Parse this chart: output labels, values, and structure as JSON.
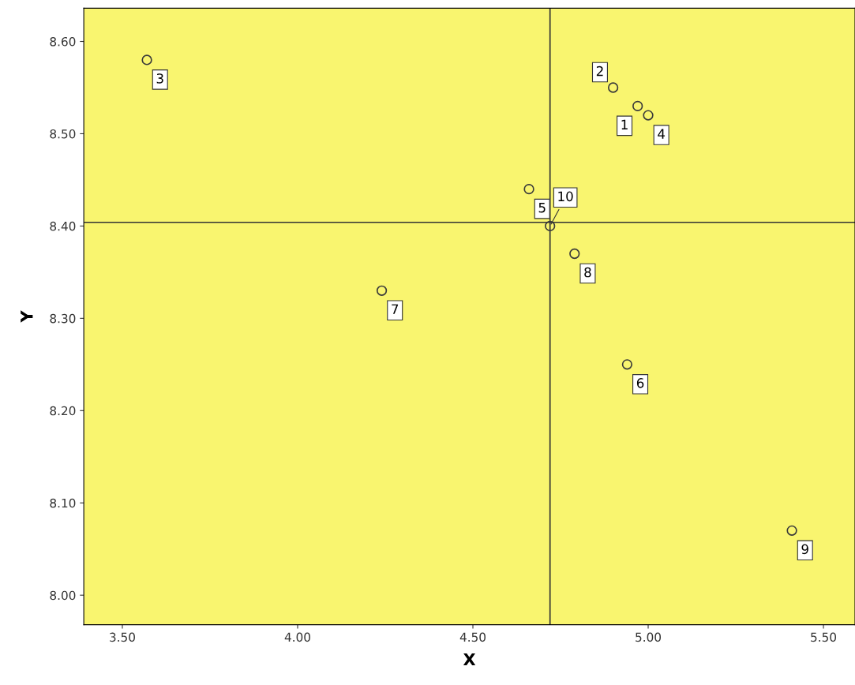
{
  "chart_data": {
    "type": "scatter",
    "xlabel": "X",
    "ylabel": "Y",
    "series": [
      {
        "color": "#3a3a3a",
        "x": [
          4.97,
          4.9,
          3.57,
          5.0,
          4.66,
          4.94,
          4.24,
          4.79,
          5.41,
          4.72
        ],
        "values": [
          8.53,
          8.55,
          8.58,
          8.52,
          8.44,
          8.25,
          8.33,
          8.37,
          8.07,
          8.4
        ]
      }
    ],
    "marker": "circle",
    "grid": false,
    "legend": false,
    "xlim": [
      3.39,
      5.59
    ],
    "ylim": [
      7.968,
      8.636
    ],
    "xticks": [
      {
        "value": 3.5,
        "label": "3.50"
      },
      {
        "value": 4.0,
        "label": "4.00"
      },
      {
        "value": 4.5,
        "label": "4.50"
      },
      {
        "value": 5.0,
        "label": "5.00"
      },
      {
        "value": 5.5,
        "label": "5.50"
      }
    ],
    "yticks": [
      {
        "value": 8.0,
        "label": "8.00"
      },
      {
        "value": 8.1,
        "label": "8.10"
      },
      {
        "value": 8.2,
        "label": "8.20"
      },
      {
        "value": 8.3,
        "label": "8.30"
      },
      {
        "value": 8.4,
        "label": "8.40"
      },
      {
        "value": 8.5,
        "label": "8.50"
      },
      {
        "value": 8.6,
        "label": "8.60"
      }
    ],
    "ref_lines": [
      {
        "axis": "x",
        "value": 4.72,
        "color": "#333333"
      },
      {
        "axis": "y",
        "value": 8.404,
        "color": "#333333"
      }
    ],
    "annotations": [
      {
        "text": "1",
        "x": 4.97,
        "y": 8.53
      },
      {
        "text": "2",
        "x": 4.9,
        "y": 8.55
      },
      {
        "text": "3",
        "x": 3.57,
        "y": 8.58
      },
      {
        "text": "4",
        "x": 5.0,
        "y": 8.52
      },
      {
        "text": "5",
        "x": 4.66,
        "y": 8.44
      },
      {
        "text": "6",
        "x": 4.94,
        "y": 8.25
      },
      {
        "text": "7",
        "x": 4.24,
        "y": 8.33
      },
      {
        "text": "8",
        "x": 4.79,
        "y": 8.37
      },
      {
        "text": "9",
        "x": 5.41,
        "y": 8.07
      },
      {
        "text": "10",
        "x": 4.72,
        "y": 8.4
      }
    ]
  }
}
